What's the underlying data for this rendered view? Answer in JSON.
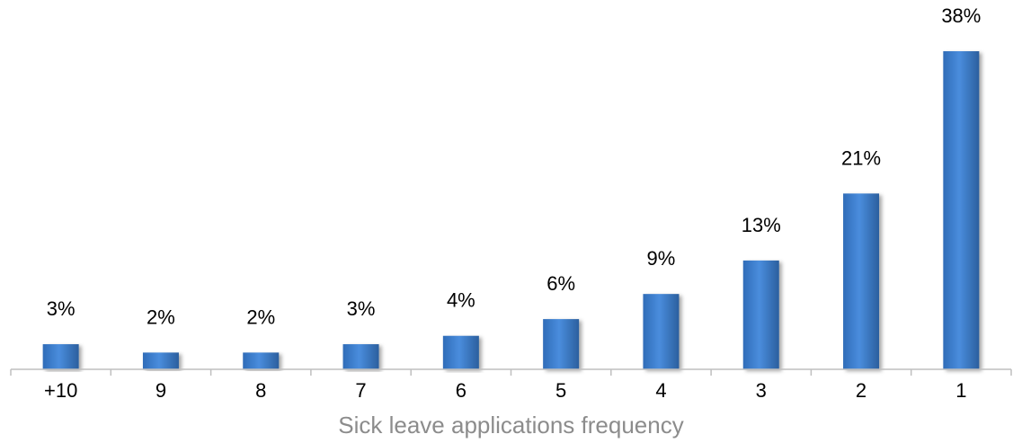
{
  "chart_data": {
    "type": "bar",
    "categories": [
      "+10",
      "9",
      "8",
      "7",
      "6",
      "5",
      "4",
      "3",
      "2",
      "1"
    ],
    "values": [
      3,
      2,
      2,
      3,
      4,
      6,
      9,
      13,
      21,
      38
    ],
    "data_labels": [
      "3%",
      "2%",
      "2%",
      "3%",
      "4%",
      "6%",
      "9%",
      "13%",
      "21%",
      "38%"
    ],
    "title": "",
    "xlabel": "Sick leave applications frequency",
    "ylabel": "",
    "ylim": [
      0,
      38
    ],
    "grid": false,
    "legend": "none",
    "bar_color": "#3c7dd0",
    "bar_color_dark": "#2b5f9e"
  }
}
